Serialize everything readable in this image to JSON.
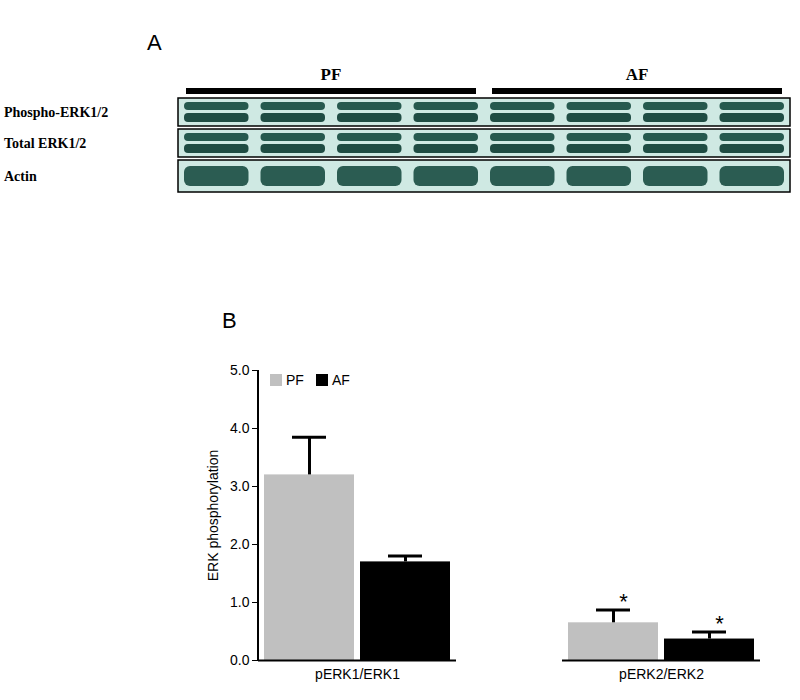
{
  "panel_a": {
    "label": "A",
    "groups": [
      "PF",
      "AF"
    ],
    "rows": [
      "Phospho-ERK1/2",
      "Total ERK1/2",
      "Actin"
    ]
  },
  "chart_data": {
    "type": "bar",
    "panel_label": "B",
    "categories": [
      "pERK1/ERK1",
      "pERK2/ERK2"
    ],
    "series": [
      {
        "name": "PF",
        "color": "#c0c0c0",
        "values": [
          3.2,
          0.65
        ],
        "errors": [
          0.65,
          0.22
        ],
        "annotations": [
          null,
          "*"
        ]
      },
      {
        "name": "AF",
        "color": "#000000",
        "values": [
          1.7,
          0.37
        ],
        "errors": [
          0.1,
          0.12
        ],
        "annotations": [
          null,
          "*"
        ]
      }
    ],
    "y_label": "ERK phosphorylation",
    "ylim": [
      0,
      5
    ],
    "yticks": [
      0,
      1,
      2,
      3,
      4,
      5
    ],
    "legend": "top-left"
  }
}
